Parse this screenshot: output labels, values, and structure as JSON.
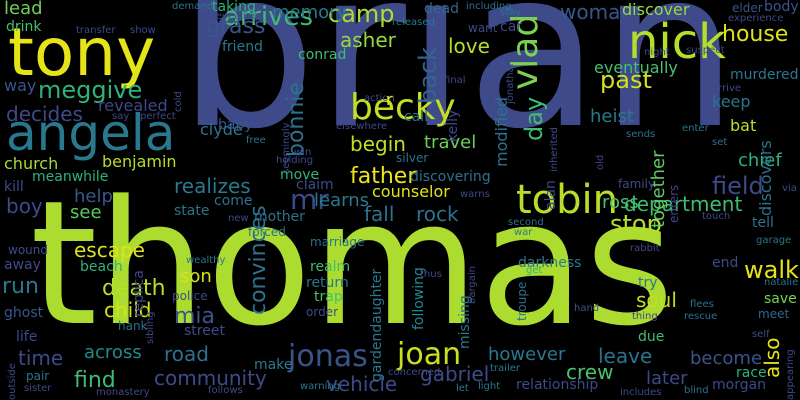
{
  "words": [
    {
      "text": "brian",
      "color": "#3e4a89"
    },
    {
      "text": "thomas",
      "color": "#addc30"
    },
    {
      "text": "tony",
      "color": "#e4e419"
    },
    {
      "text": "angela",
      "color": "#2a788e"
    },
    {
      "text": "nick",
      "color": "#b5de2b"
    },
    {
      "text": "becky",
      "color": "#c2df23"
    },
    {
      "text": "tobin",
      "color": "#b8de29"
    },
    {
      "text": "vlad",
      "color": "#7ad151"
    },
    {
      "text": "jonas",
      "color": "#3b528b"
    },
    {
      "text": "joan",
      "color": "#c8e020"
    },
    {
      "text": "arrives",
      "color": "#3fbc73"
    },
    {
      "text": "meggive",
      "color": "#2db27d"
    },
    {
      "text": "bonnie",
      "color": "#2c728e"
    },
    {
      "text": "asher",
      "color": "#95d840"
    },
    {
      "text": "grass",
      "color": "#39558c"
    },
    {
      "text": "camp",
      "color": "#addc30"
    },
    {
      "text": "memory",
      "color": "#2a788e"
    },
    {
      "text": "back",
      "color": "#31668e"
    },
    {
      "text": "love",
      "color": "#b5de2b"
    },
    {
      "text": "past",
      "color": "#d2e21b"
    },
    {
      "text": "house",
      "color": "#dde318"
    },
    {
      "text": "woman",
      "color": "#39568c"
    },
    {
      "text": "discover",
      "color": "#95d840"
    },
    {
      "text": "decides",
      "color": "#3e4989"
    },
    {
      "text": "lead",
      "color": "#6ece58"
    },
    {
      "text": "drink",
      "color": "#46c06f"
    },
    {
      "text": "way",
      "color": "#39558c"
    },
    {
      "text": "church",
      "color": "#a5db36"
    },
    {
      "text": "begin",
      "color": "#c2df23"
    },
    {
      "text": "father",
      "color": "#ece51b"
    },
    {
      "text": "mr",
      "color": "#3e4989"
    },
    {
      "text": "realizes",
      "color": "#2a788e"
    },
    {
      "text": "fall",
      "color": "#2c728e"
    },
    {
      "text": "rock",
      "color": "#2c728e"
    },
    {
      "text": "department",
      "color": "#3fbc73"
    },
    {
      "text": "ross",
      "color": "#46c06f"
    },
    {
      "text": "stop",
      "color": "#b5de2b"
    },
    {
      "text": "field",
      "color": "#3e4989"
    },
    {
      "text": "walk",
      "color": "#e4e419"
    },
    {
      "text": "escape",
      "color": "#dde318"
    },
    {
      "text": "son",
      "color": "#d8e219"
    },
    {
      "text": "death",
      "color": "#b8de29"
    },
    {
      "text": "child",
      "color": "#d2e21b"
    },
    {
      "text": "mia",
      "color": "#39558c"
    },
    {
      "text": "run",
      "color": "#2a788e"
    },
    {
      "text": "time",
      "color": "#3e4989"
    },
    {
      "text": "across",
      "color": "#228b8d"
    },
    {
      "text": "find",
      "color": "#3fbc73"
    },
    {
      "text": "road",
      "color": "#2c728e"
    },
    {
      "text": "community",
      "color": "#3e4a89"
    },
    {
      "text": "convinces",
      "color": "#2c728e"
    },
    {
      "text": "vehicle",
      "color": "#3e4989"
    },
    {
      "text": "gabriel",
      "color": "#3e4a89"
    },
    {
      "text": "however",
      "color": "#2a788e"
    },
    {
      "text": "crew",
      "color": "#4ac16d"
    },
    {
      "text": "leave",
      "color": "#2c728e"
    },
    {
      "text": "later",
      "color": "#3e4989"
    },
    {
      "text": "become",
      "color": "#39558c"
    },
    {
      "text": "soul",
      "color": "#c2df23"
    },
    {
      "text": "also",
      "color": "#e4e419"
    },
    {
      "text": "together",
      "color": "#5ec962"
    },
    {
      "text": "day",
      "color": "#3fbc73"
    },
    {
      "text": "help",
      "color": "#39558c"
    },
    {
      "text": "see",
      "color": "#5ec962"
    },
    {
      "text": "boy",
      "color": "#3e4989"
    },
    {
      "text": "learns",
      "color": "#2a788e"
    },
    {
      "text": "counselor",
      "color": "#e4e419"
    },
    {
      "text": "travel",
      "color": "#6ece58"
    },
    {
      "text": "chief",
      "color": "#2db27d"
    },
    {
      "text": "keep",
      "color": "#2c728e"
    },
    {
      "text": "heist",
      "color": "#2a788e"
    },
    {
      "text": "murdered",
      "color": "#2a788e"
    },
    {
      "text": "eventually",
      "color": "#46c06f"
    },
    {
      "text": "bat",
      "color": "#c2df23"
    },
    {
      "text": "discovers",
      "color": "#2c728e"
    },
    {
      "text": "modified",
      "color": "#2c728e"
    },
    {
      "text": "kelly",
      "color": "#3e4989"
    },
    {
      "text": "call",
      "color": "#2c728e"
    },
    {
      "text": "revealed",
      "color": "#3e4989"
    },
    {
      "text": "clyde",
      "color": "#2a788e"
    },
    {
      "text": "baby",
      "color": "#39558c"
    },
    {
      "text": "benjamin",
      "color": "#b5de2b"
    },
    {
      "text": "meanwhile",
      "color": "#2db27d"
    },
    {
      "text": "kill",
      "color": "#3e4989"
    },
    {
      "text": "friend",
      "color": "#2a788e"
    },
    {
      "text": "conrad",
      "color": "#3fbc73"
    },
    {
      "text": "taking",
      "color": "#2db27d"
    },
    {
      "text": "dead",
      "color": "#31668e"
    },
    {
      "text": "car",
      "color": "#3e4989"
    },
    {
      "text": "want",
      "color": "#3e4989"
    },
    {
      "text": "body",
      "color": "#39558c"
    },
    {
      "text": "elder",
      "color": "#39558c"
    },
    {
      "text": "claim",
      "color": "#3e4989"
    },
    {
      "text": "move",
      "color": "#2db27d"
    },
    {
      "text": "come",
      "color": "#2c728e"
    },
    {
      "text": "state",
      "color": "#2c728e"
    },
    {
      "text": "mother",
      "color": "#2c728e"
    },
    {
      "text": "discovering",
      "color": "#2c728e"
    },
    {
      "text": "family",
      "color": "#3e4989"
    },
    {
      "text": "enters",
      "color": "#3e4989"
    },
    {
      "text": "realm",
      "color": "#3fbc73"
    },
    {
      "text": "return",
      "color": "#2a788e"
    },
    {
      "text": "trap",
      "color": "#46c06f"
    },
    {
      "text": "darkness",
      "color": "#2a788e"
    },
    {
      "text": "following",
      "color": "#228b8d"
    },
    {
      "text": "missing",
      "color": "#2a788e"
    },
    {
      "text": "gardendaughter",
      "color": "#2a788e"
    },
    {
      "text": "street",
      "color": "#3e4989"
    },
    {
      "text": "make",
      "color": "#2a788e"
    },
    {
      "text": "relationship",
      "color": "#3e4989"
    },
    {
      "text": "race",
      "color": "#2db27d"
    },
    {
      "text": "morgan",
      "color": "#3e4989"
    },
    {
      "text": "save",
      "color": "#7ad151"
    },
    {
      "text": "tell",
      "color": "#2c728e"
    },
    {
      "text": "try",
      "color": "#2a788e"
    },
    {
      "text": "meet",
      "color": "#31668e"
    },
    {
      "text": "end",
      "color": "#3e4989"
    },
    {
      "text": "due",
      "color": "#3fbc73"
    },
    {
      "text": "away",
      "color": "#3e4989"
    },
    {
      "text": "beach",
      "color": "#2db27d"
    },
    {
      "text": "ghost",
      "color": "#39558c"
    },
    {
      "text": "life",
      "color": "#3e4989"
    },
    {
      "text": "pair",
      "color": "#2c728e"
    },
    {
      "text": "police",
      "color": "#3e4989"
    },
    {
      "text": "order",
      "color": "#3e4989"
    },
    {
      "text": "troupe",
      "color": "#2c728e"
    },
    {
      "text": "trailer",
      "color": "#2a788e"
    },
    {
      "text": "hank",
      "color": "#2c728e"
    },
    {
      "text": "wealthy",
      "color": "#2a788e"
    },
    {
      "text": "wound",
      "color": "#3e4989"
    },
    {
      "text": "forced",
      "color": "#2c728e"
    },
    {
      "text": "marriage",
      "color": "#2c728e"
    },
    {
      "text": "warning",
      "color": "#2a788e"
    },
    {
      "text": "follows",
      "color": "#3e4989"
    },
    {
      "text": "monastery",
      "color": "#3e4989"
    },
    {
      "text": "sister",
      "color": "#3e4989"
    },
    {
      "text": "let",
      "color": "#2a788e"
    },
    {
      "text": "light",
      "color": "#2a788e"
    },
    {
      "text": "includes",
      "color": "#3e4989"
    },
    {
      "text": "blind",
      "color": "#2c728e"
    },
    {
      "text": "hand",
      "color": "#39558c"
    },
    {
      "text": "flees",
      "color": "#2c728e"
    },
    {
      "text": "rescue",
      "color": "#2c728e"
    },
    {
      "text": "natalie",
      "color": "#2c728e"
    },
    {
      "text": "garage",
      "color": "#2c728e"
    },
    {
      "text": "rabbit",
      "color": "#3e4989"
    },
    {
      "text": "second",
      "color": "#2c728e"
    },
    {
      "text": "war",
      "color": "#2a788e"
    },
    {
      "text": "get",
      "color": "#2db27d"
    },
    {
      "text": "silver",
      "color": "#2c728e"
    },
    {
      "text": "holding",
      "color": "#3e4989"
    },
    {
      "text": "free",
      "color": "#2c728e"
    },
    {
      "text": "win",
      "color": "#3e4989"
    },
    {
      "text": "set",
      "color": "#2c728e"
    },
    {
      "text": "enter",
      "color": "#2c728e"
    },
    {
      "text": "sends",
      "color": "#2c728e"
    },
    {
      "text": "demand",
      "color": "#2c728e"
    },
    {
      "text": "revealing",
      "color": "#3e4989"
    },
    {
      "text": "released",
      "color": "#2a788e"
    },
    {
      "text": "including",
      "color": "#2c728e"
    },
    {
      "text": "stay",
      "color": "#2c728e"
    },
    {
      "text": "show",
      "color": "#3e4989"
    },
    {
      "text": "transfer",
      "color": "#3e4989"
    },
    {
      "text": "experience",
      "color": "#3e4989"
    },
    {
      "text": "night",
      "color": "#3e4989"
    },
    {
      "text": "suspect",
      "color": "#3e4989"
    },
    {
      "text": "arrive",
      "color": "#3e4989"
    },
    {
      "text": "perfect",
      "color": "#3e4989"
    },
    {
      "text": "say",
      "color": "#3e4989"
    },
    {
      "text": "cold",
      "color": "#3e4989"
    },
    {
      "text": "final",
      "color": "#3e4989"
    },
    {
      "text": "action",
      "color": "#3e4989"
    },
    {
      "text": "elsewhere",
      "color": "#3e4989"
    },
    {
      "text": "seemingly",
      "color": "#3e4989"
    },
    {
      "text": "inherited",
      "color": "#3e4989"
    },
    {
      "text": "old",
      "color": "#3e4989"
    },
    {
      "text": "warns",
      "color": "#3e4989"
    },
    {
      "text": "concerned",
      "color": "#3e4989"
    },
    {
      "text": "thus",
      "color": "#3e4989"
    },
    {
      "text": "bargain",
      "color": "#3e4989"
    },
    {
      "text": "via",
      "color": "#3e4989"
    },
    {
      "text": "touch",
      "color": "#3e4989"
    },
    {
      "text": "appearing",
      "color": "#3e4989"
    },
    {
      "text": "self",
      "color": "#3e4989"
    },
    {
      "text": "thing",
      "color": "#3e4989"
    },
    {
      "text": "sibling",
      "color": "#3e4989"
    },
    {
      "text": "outside",
      "color": "#3e4989"
    },
    {
      "text": "new",
      "color": "#3e4989"
    },
    {
      "text": "replica",
      "color": "#3e4989"
    },
    {
      "text": "alan",
      "color": "#3e4989"
    },
    {
      "text": "jonathan",
      "color": "#3e4989"
    },
    {
      "text": "r",
      "color": "#ece51b"
    }
  ]
}
